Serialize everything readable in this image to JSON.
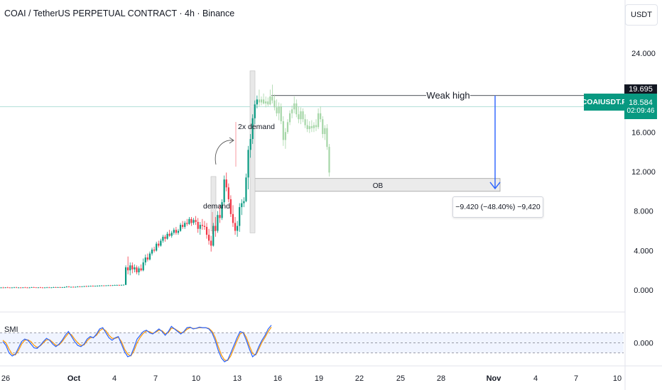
{
  "header": {
    "title": "COAI / TetherUS PERPETUAL CONTRACT · 4h · Binance",
    "currency": "USDT"
  },
  "price_axis": {
    "ticks": [
      "24.000",
      "19.695",
      "16.000",
      "12.000",
      "8.000",
      "4.000",
      "0.000"
    ]
  },
  "tags": {
    "weak_high_price": "19.695",
    "symbol": "COAIUSDT.P",
    "last_price": "18.584",
    "countdown": "02:09:46"
  },
  "annotations": {
    "weak_high": "Weak high",
    "demand": "demand",
    "double_demand": "2x demand",
    "order_block": "OB",
    "measure": "−9.420 (−48.40%) −9,420"
  },
  "indicator": {
    "name": "SMI",
    "tick": "0.000"
  },
  "time_axis": {
    "ticks": [
      "26",
      "Oct",
      "4",
      "7",
      "10",
      "13",
      "16",
      "19",
      "22",
      "25",
      "28",
      "Nov",
      "4",
      "7",
      "10"
    ]
  },
  "colors": {
    "up": "#089981",
    "down": "#f23645",
    "ghost": "#a5d6a7",
    "measure_arrow": "#2962ff",
    "smi_blue": "#2962ff",
    "smi_orange": "#ff9800"
  },
  "chart_data": {
    "type": "candlestick",
    "timeframe": "4h",
    "y_range": [
      -1.5,
      26.5
    ],
    "price_levels": {
      "weak_high": 19.695,
      "last": 18.584
    },
    "order_block": {
      "low": 10.0,
      "high": 11.3,
      "label": "OB"
    },
    "measure": {
      "from": 19.695,
      "to": 10.275,
      "change": -9.42,
      "change_pct": -48.4
    },
    "candles": [
      {
        "o": 0.25,
        "h": 0.3,
        "l": 0.2,
        "c": 0.26
      },
      {
        "o": 0.26,
        "h": 0.32,
        "l": 0.2,
        "c": 0.25
      },
      {
        "o": 0.25,
        "h": 0.3,
        "l": 0.2,
        "c": 0.27
      },
      {
        "o": 0.27,
        "h": 0.33,
        "l": 0.22,
        "c": 0.26
      },
      {
        "o": 0.26,
        "h": 0.3,
        "l": 0.2,
        "c": 0.24
      },
      {
        "o": 0.24,
        "h": 0.3,
        "l": 0.2,
        "c": 0.26
      },
      {
        "o": 0.26,
        "h": 0.32,
        "l": 0.22,
        "c": 0.27
      },
      {
        "o": 0.27,
        "h": 0.33,
        "l": 0.22,
        "c": 0.25
      },
      {
        "o": 0.25,
        "h": 0.3,
        "l": 0.2,
        "c": 0.26
      },
      {
        "o": 0.26,
        "h": 0.3,
        "l": 0.2,
        "c": 0.25
      },
      {
        "o": 0.25,
        "h": 0.3,
        "l": 0.2,
        "c": 0.27
      },
      {
        "o": 0.27,
        "h": 0.32,
        "l": 0.22,
        "c": 0.26
      },
      {
        "o": 0.26,
        "h": 0.3,
        "l": 0.2,
        "c": 0.25
      },
      {
        "o": 0.25,
        "h": 0.3,
        "l": 0.2,
        "c": 0.26
      },
      {
        "o": 0.26,
        "h": 0.32,
        "l": 0.22,
        "c": 0.28
      },
      {
        "o": 0.28,
        "h": 0.33,
        "l": 0.22,
        "c": 0.27
      },
      {
        "o": 0.27,
        "h": 0.3,
        "l": 0.22,
        "c": 0.26
      },
      {
        "o": 0.26,
        "h": 0.3,
        "l": 0.2,
        "c": 0.27
      },
      {
        "o": 0.27,
        "h": 0.32,
        "l": 0.22,
        "c": 0.26
      },
      {
        "o": 0.26,
        "h": 0.3,
        "l": 0.2,
        "c": 0.25
      },
      {
        "o": 0.25,
        "h": 0.3,
        "l": 0.2,
        "c": 0.26
      },
      {
        "o": 0.26,
        "h": 0.32,
        "l": 0.22,
        "c": 0.27
      },
      {
        "o": 0.27,
        "h": 0.32,
        "l": 0.22,
        "c": 0.26
      },
      {
        "o": 0.26,
        "h": 0.3,
        "l": 0.2,
        "c": 0.27
      },
      {
        "o": 0.27,
        "h": 0.33,
        "l": 0.22,
        "c": 0.28
      },
      {
        "o": 0.28,
        "h": 0.33,
        "l": 0.22,
        "c": 0.27
      },
      {
        "o": 0.27,
        "h": 0.32,
        "l": 0.22,
        "c": 0.28
      },
      {
        "o": 0.28,
        "h": 0.33,
        "l": 0.22,
        "c": 0.27
      },
      {
        "o": 0.27,
        "h": 0.32,
        "l": 0.22,
        "c": 0.28
      },
      {
        "o": 0.28,
        "h": 0.35,
        "l": 0.22,
        "c": 0.3
      },
      {
        "o": 0.3,
        "h": 0.4,
        "l": 0.25,
        "c": 0.35
      },
      {
        "o": 0.35,
        "h": 0.4,
        "l": 0.28,
        "c": 0.3
      },
      {
        "o": 0.3,
        "h": 0.36,
        "l": 0.25,
        "c": 0.32
      },
      {
        "o": 0.32,
        "h": 0.38,
        "l": 0.26,
        "c": 0.3
      },
      {
        "o": 0.3,
        "h": 0.36,
        "l": 0.25,
        "c": 0.33
      },
      {
        "o": 0.33,
        "h": 0.4,
        "l": 0.28,
        "c": 0.36
      },
      {
        "o": 0.36,
        "h": 0.4,
        "l": 0.3,
        "c": 0.34
      },
      {
        "o": 0.34,
        "h": 0.4,
        "l": 0.3,
        "c": 0.37
      },
      {
        "o": 0.37,
        "h": 0.42,
        "l": 0.3,
        "c": 0.4
      },
      {
        "o": 0.4,
        "h": 0.45,
        "l": 0.32,
        "c": 0.38
      },
      {
        "o": 0.38,
        "h": 0.45,
        "l": 0.33,
        "c": 0.41
      },
      {
        "o": 0.41,
        "h": 0.46,
        "l": 0.35,
        "c": 0.42
      },
      {
        "o": 0.42,
        "h": 0.48,
        "l": 0.35,
        "c": 0.4
      },
      {
        "o": 0.4,
        "h": 0.46,
        "l": 0.35,
        "c": 0.43
      },
      {
        "o": 0.43,
        "h": 0.48,
        "l": 0.36,
        "c": 0.44
      },
      {
        "o": 0.44,
        "h": 0.5,
        "l": 0.38,
        "c": 0.45
      },
      {
        "o": 0.45,
        "h": 0.5,
        "l": 0.4,
        "c": 0.46
      },
      {
        "o": 0.46,
        "h": 0.5,
        "l": 0.4,
        "c": 0.45
      },
      {
        "o": 0.45,
        "h": 0.5,
        "l": 0.4,
        "c": 0.47
      },
      {
        "o": 0.47,
        "h": 0.52,
        "l": 0.42,
        "c": 0.48
      },
      {
        "o": 0.48,
        "h": 0.52,
        "l": 0.42,
        "c": 0.47
      },
      {
        "o": 0.47,
        "h": 0.52,
        "l": 0.42,
        "c": 0.49
      },
      {
        "o": 0.49,
        "h": 0.55,
        "l": 0.44,
        "c": 0.5
      },
      {
        "o": 0.5,
        "h": 0.56,
        "l": 0.45,
        "c": 0.51
      },
      {
        "o": 0.51,
        "h": 0.56,
        "l": 0.46,
        "c": 0.5
      },
      {
        "o": 0.5,
        "h": 0.56,
        "l": 0.46,
        "c": 0.52
      },
      {
        "o": 0.52,
        "h": 0.58,
        "l": 0.47,
        "c": 0.53
      },
      {
        "o": 0.53,
        "h": 2.5,
        "l": 0.5,
        "c": 2.3
      },
      {
        "o": 2.3,
        "h": 3.4,
        "l": 1.6,
        "c": 2.0
      },
      {
        "o": 2.0,
        "h": 2.8,
        "l": 1.5,
        "c": 2.5
      },
      {
        "o": 2.5,
        "h": 2.8,
        "l": 1.7,
        "c": 2.1
      },
      {
        "o": 2.1,
        "h": 2.6,
        "l": 1.8,
        "c": 2.3
      },
      {
        "o": 2.3,
        "h": 2.5,
        "l": 1.6,
        "c": 1.8
      },
      {
        "o": 1.8,
        "h": 2.4,
        "l": 1.5,
        "c": 2.2
      },
      {
        "o": 2.2,
        "h": 2.6,
        "l": 1.9,
        "c": 2.0
      },
      {
        "o": 2.0,
        "h": 3.2,
        "l": 1.9,
        "c": 2.8
      },
      {
        "o": 2.8,
        "h": 3.6,
        "l": 2.5,
        "c": 3.3
      },
      {
        "o": 3.3,
        "h": 3.7,
        "l": 2.9,
        "c": 3.1
      },
      {
        "o": 3.1,
        "h": 3.9,
        "l": 3.0,
        "c": 3.7
      },
      {
        "o": 3.7,
        "h": 4.3,
        "l": 3.5,
        "c": 4.1
      },
      {
        "o": 4.1,
        "h": 4.4,
        "l": 3.8,
        "c": 4.0
      },
      {
        "o": 4.0,
        "h": 4.9,
        "l": 3.9,
        "c": 4.7
      },
      {
        "o": 4.7,
        "h": 5.0,
        "l": 4.3,
        "c": 4.5
      },
      {
        "o": 4.5,
        "h": 5.2,
        "l": 4.4,
        "c": 5.0
      },
      {
        "o": 5.0,
        "h": 5.6,
        "l": 4.8,
        "c": 5.4
      },
      {
        "o": 5.4,
        "h": 5.6,
        "l": 4.9,
        "c": 5.2
      },
      {
        "o": 5.2,
        "h": 5.9,
        "l": 5.1,
        "c": 5.7
      },
      {
        "o": 5.7,
        "h": 6.1,
        "l": 5.4,
        "c": 5.5
      },
      {
        "o": 5.5,
        "h": 6.0,
        "l": 5.3,
        "c": 5.8
      },
      {
        "o": 5.8,
        "h": 6.3,
        "l": 5.6,
        "c": 6.1
      },
      {
        "o": 6.1,
        "h": 6.4,
        "l": 5.6,
        "c": 5.8
      },
      {
        "o": 5.8,
        "h": 6.2,
        "l": 5.6,
        "c": 6.0
      },
      {
        "o": 6.0,
        "h": 6.8,
        "l": 5.9,
        "c": 6.6
      },
      {
        "o": 6.6,
        "h": 7.0,
        "l": 6.2,
        "c": 6.4
      },
      {
        "o": 6.4,
        "h": 7.0,
        "l": 6.2,
        "c": 6.8
      },
      {
        "o": 6.8,
        "h": 7.2,
        "l": 6.5,
        "c": 6.7
      },
      {
        "o": 6.7,
        "h": 7.4,
        "l": 6.6,
        "c": 7.2
      },
      {
        "o": 7.2,
        "h": 7.4,
        "l": 6.5,
        "c": 6.8
      },
      {
        "o": 6.8,
        "h": 7.3,
        "l": 6.6,
        "c": 7.1
      },
      {
        "o": 7.1,
        "h": 7.5,
        "l": 6.6,
        "c": 6.9
      },
      {
        "o": 6.9,
        "h": 7.3,
        "l": 5.8,
        "c": 6.2
      },
      {
        "o": 6.2,
        "h": 6.9,
        "l": 5.6,
        "c": 6.6
      },
      {
        "o": 6.6,
        "h": 7.2,
        "l": 6.1,
        "c": 6.5
      },
      {
        "o": 6.5,
        "h": 7.0,
        "l": 6.1,
        "c": 6.4
      },
      {
        "o": 6.4,
        "h": 6.8,
        "l": 5.2,
        "c": 5.6
      },
      {
        "o": 5.6,
        "h": 6.2,
        "l": 4.6,
        "c": 5.0
      },
      {
        "o": 5.0,
        "h": 5.5,
        "l": 3.9,
        "c": 4.5
      },
      {
        "o": 4.5,
        "h": 6.8,
        "l": 4.4,
        "c": 6.5
      },
      {
        "o": 6.5,
        "h": 7.4,
        "l": 5.4,
        "c": 6.0
      },
      {
        "o": 6.0,
        "h": 8.0,
        "l": 5.8,
        "c": 7.6
      },
      {
        "o": 7.6,
        "h": 8.6,
        "l": 6.8,
        "c": 7.3
      },
      {
        "o": 7.3,
        "h": 9.2,
        "l": 7.1,
        "c": 8.9
      },
      {
        "o": 8.9,
        "h": 11.6,
        "l": 8.7,
        "c": 11.2
      },
      {
        "o": 11.2,
        "h": 11.9,
        "l": 10.0,
        "c": 10.4
      },
      {
        "o": 10.4,
        "h": 10.8,
        "l": 8.9,
        "c": 9.2
      },
      {
        "o": 9.2,
        "h": 9.6,
        "l": 7.4,
        "c": 7.7
      },
      {
        "o": 7.7,
        "h": 8.6,
        "l": 6.4,
        "c": 6.8
      },
      {
        "o": 6.8,
        "h": 7.4,
        "l": 5.6,
        "c": 6.0
      },
      {
        "o": 6.0,
        "h": 7.0,
        "l": 5.4,
        "c": 6.5
      },
      {
        "o": 6.5,
        "h": 8.8,
        "l": 5.9,
        "c": 8.4
      },
      {
        "o": 8.4,
        "h": 9.2,
        "l": 7.6,
        "c": 8.8
      },
      {
        "o": 8.8,
        "h": 9.4,
        "l": 8.4,
        "c": 9.0
      },
      {
        "o": 9.0,
        "h": 11.8,
        "l": 8.9,
        "c": 11.4
      },
      {
        "o": 11.4,
        "h": 14.6,
        "l": 10.2,
        "c": 14.2
      },
      {
        "o": 14.2,
        "h": 15.8,
        "l": 13.4,
        "c": 15.3
      },
      {
        "o": 15.3,
        "h": 17.8,
        "l": 14.8,
        "c": 17.4
      },
      {
        "o": 17.4,
        "h": 19.2,
        "l": 16.8,
        "c": 18.8
      },
      {
        "o": 18.8,
        "h": 19.7,
        "l": 18.4,
        "c": 19.3
      }
    ],
    "ghost_candles": [
      {
        "o": 19.3,
        "h": 20.3,
        "l": 18.6,
        "c": 19.0
      },
      {
        "o": 19.0,
        "h": 19.6,
        "l": 18.7,
        "c": 19.3
      },
      {
        "o": 19.3,
        "h": 19.9,
        "l": 18.8,
        "c": 18.9
      },
      {
        "o": 18.9,
        "h": 19.6,
        "l": 18.5,
        "c": 19.1
      },
      {
        "o": 19.1,
        "h": 19.5,
        "l": 18.6,
        "c": 18.8
      },
      {
        "o": 18.8,
        "h": 20.3,
        "l": 18.7,
        "c": 19.6
      },
      {
        "o": 19.6,
        "h": 20.8,
        "l": 18.9,
        "c": 19.2
      },
      {
        "o": 19.2,
        "h": 19.8,
        "l": 18.2,
        "c": 18.5
      },
      {
        "o": 18.5,
        "h": 19.3,
        "l": 17.6,
        "c": 17.9
      },
      {
        "o": 17.9,
        "h": 19.0,
        "l": 17.2,
        "c": 18.6
      },
      {
        "o": 18.6,
        "h": 18.9,
        "l": 16.8,
        "c": 17.1
      },
      {
        "o": 17.1,
        "h": 17.6,
        "l": 14.6,
        "c": 15.2
      },
      {
        "o": 15.2,
        "h": 16.4,
        "l": 14.3,
        "c": 16.0
      },
      {
        "o": 16.0,
        "h": 17.3,
        "l": 15.8,
        "c": 17.0
      },
      {
        "o": 17.0,
        "h": 18.2,
        "l": 16.7,
        "c": 17.9
      },
      {
        "o": 17.9,
        "h": 18.7,
        "l": 17.4,
        "c": 18.3
      },
      {
        "o": 18.3,
        "h": 19.6,
        "l": 17.9,
        "c": 18.9
      },
      {
        "o": 18.9,
        "h": 19.3,
        "l": 17.5,
        "c": 17.8
      },
      {
        "o": 17.8,
        "h": 18.6,
        "l": 16.9,
        "c": 17.3
      },
      {
        "o": 17.3,
        "h": 18.5,
        "l": 16.8,
        "c": 18.1
      },
      {
        "o": 18.1,
        "h": 18.4,
        "l": 17.0,
        "c": 17.3
      },
      {
        "o": 17.3,
        "h": 17.8,
        "l": 16.4,
        "c": 16.7
      },
      {
        "o": 16.7,
        "h": 17.3,
        "l": 16.0,
        "c": 16.3
      },
      {
        "o": 16.3,
        "h": 17.1,
        "l": 15.9,
        "c": 16.6
      },
      {
        "o": 16.6,
        "h": 17.2,
        "l": 16.0,
        "c": 16.4
      },
      {
        "o": 16.4,
        "h": 17.0,
        "l": 16.0,
        "c": 16.7
      },
      {
        "o": 16.7,
        "h": 17.3,
        "l": 16.1,
        "c": 16.5
      },
      {
        "o": 16.5,
        "h": 18.4,
        "l": 16.3,
        "c": 17.9
      },
      {
        "o": 17.9,
        "h": 18.6,
        "l": 17.0,
        "c": 17.3
      },
      {
        "o": 17.3,
        "h": 17.6,
        "l": 15.4,
        "c": 15.8
      },
      {
        "o": 15.8,
        "h": 16.7,
        "l": 15.2,
        "c": 16.4
      },
      {
        "o": 16.4,
        "h": 16.8,
        "l": 14.2,
        "c": 14.5
      },
      {
        "o": 14.5,
        "h": 14.8,
        "l": 11.5,
        "c": 11.9
      }
    ],
    "smi": {
      "range": [
        -80,
        80
      ],
      "levels": [
        40,
        0,
        -40
      ],
      "k": [
        5,
        -10,
        -40,
        -52,
        -45,
        -20,
        5,
        15,
        10,
        -5,
        -20,
        -22,
        -10,
        5,
        18,
        10,
        -5,
        -15,
        -5,
        10,
        30,
        45,
        25,
        5,
        -10,
        -15,
        -5,
        15,
        25,
        20,
        35,
        55,
        60,
        40,
        20,
        10,
        20,
        25,
        -5,
        -35,
        -55,
        -50,
        -20,
        15,
        30,
        45,
        50,
        40,
        35,
        45,
        55,
        45,
        30,
        45,
        65,
        55,
        45,
        35,
        45,
        60,
        62,
        55,
        58,
        62,
        60,
        60,
        55,
        40,
        10,
        -30,
        -60,
        -75,
        -68,
        -40,
        -10,
        20,
        45,
        40,
        10,
        -25,
        -55,
        -45,
        -15,
        10,
        30,
        55,
        70
      ],
      "d": [
        10,
        0,
        -25,
        -45,
        -48,
        -30,
        -5,
        10,
        12,
        5,
        -10,
        -18,
        -12,
        0,
        12,
        12,
        2,
        -10,
        -8,
        5,
        22,
        38,
        32,
        15,
        0,
        -10,
        -8,
        8,
        20,
        22,
        30,
        48,
        56,
        48,
        30,
        18,
        18,
        22,
        5,
        -25,
        -45,
        -52,
        -32,
        0,
        22,
        38,
        47,
        44,
        38,
        42,
        50,
        48,
        36,
        40,
        58,
        56,
        48,
        40,
        43,
        54,
        60,
        57,
        57,
        60,
        60,
        60,
        57,
        46,
        22,
        -15,
        -48,
        -68,
        -70,
        -52,
        -22,
        8,
        35,
        42,
        22,
        -12,
        -42,
        -48,
        -25,
        2,
        22,
        45,
        62
      ]
    }
  }
}
